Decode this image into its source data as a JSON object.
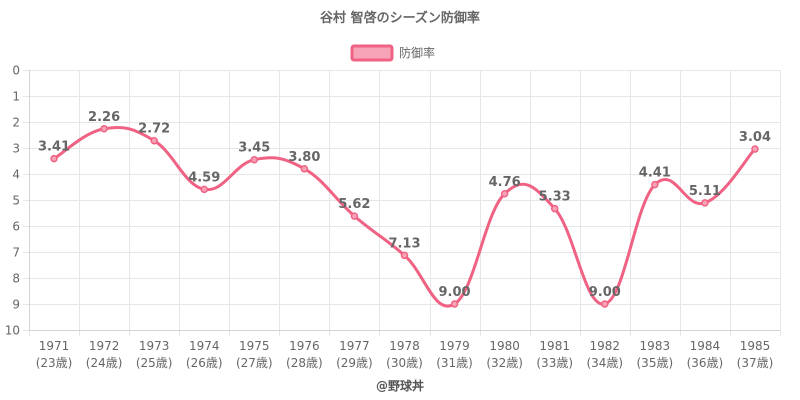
{
  "chart_data": {
    "type": "line",
    "title": "谷村 智啓のシーズン防御率",
    "legend": {
      "label": "防御率",
      "placement": "top-center"
    },
    "categories": [
      "1971",
      "1972",
      "1973",
      "1974",
      "1975",
      "1976",
      "1977",
      "1978",
      "1979",
      "1980",
      "1981",
      "1982",
      "1983",
      "1984",
      "1985"
    ],
    "sub_labels": [
      "(23歳)",
      "(24歳)",
      "(25歳)",
      "(26歳)",
      "(27歳)",
      "(28歳)",
      "(29歳)",
      "(30歳)",
      "(31歳)",
      "(32歳)",
      "(33歳)",
      "(34歳)",
      "(35歳)",
      "(36歳)",
      "(37歳)"
    ],
    "series": [
      {
        "name": "防御率",
        "values": [
          3.41,
          2.26,
          2.72,
          4.59,
          3.45,
          3.8,
          5.62,
          7.13,
          9.0,
          4.76,
          5.33,
          9.0,
          4.41,
          5.11,
          3.04
        ],
        "labels": [
          "3.41",
          "2.26",
          "2.72",
          "4.59",
          "3.45",
          "3.80",
          "5.62",
          "7.13",
          "9.00",
          "4.76",
          "5.33",
          "9.00",
          "4.41",
          "5.11",
          "3.04"
        ]
      }
    ],
    "y_ticks": [
      "0",
      "1",
      "2",
      "3",
      "4",
      "5",
      "6",
      "7",
      "8",
      "9",
      "10"
    ],
    "ylim": [
      0,
      10
    ],
    "y_reversed": true,
    "grid": true,
    "xlabel": "",
    "ylabel": "",
    "colors": {
      "line": "#f06283",
      "fill": "#f7a3b7",
      "text": "#666666",
      "grid": "#e6e6e6"
    }
  },
  "credit": "@野球丼"
}
